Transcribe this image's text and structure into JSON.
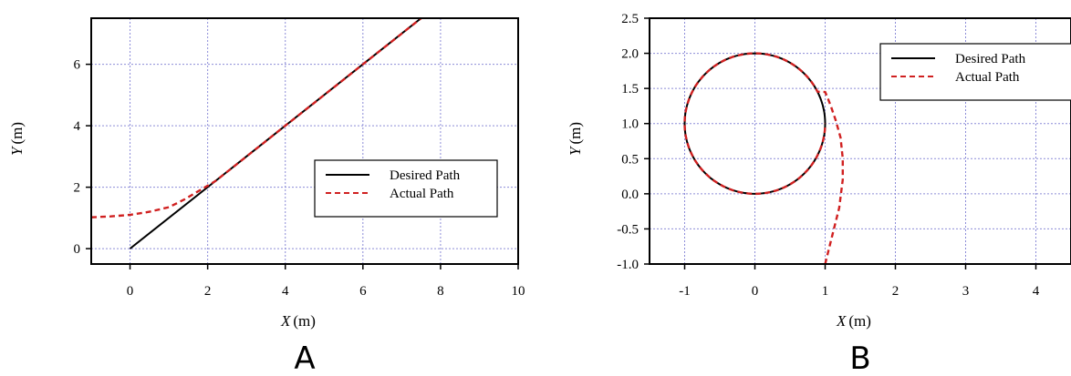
{
  "colors": {
    "desired": "#000000",
    "actual": "#d02020",
    "grid": "#8c8cd8"
  },
  "chart_data": [
    {
      "type": "line",
      "panel_label": "A",
      "xlabel_italic": "X",
      "xlabel_unit": "(m)",
      "ylabel_italic": "Y",
      "ylabel_unit": "(m)",
      "xlim": [
        -1,
        10
      ],
      "ylim": [
        -0.5,
        7.5
      ],
      "xticks": [
        0,
        2,
        4,
        6,
        8,
        10
      ],
      "xtick_labels": [
        "0",
        "2",
        "4",
        "6",
        "8",
        "10"
      ],
      "yticks": [
        0,
        2,
        4,
        6
      ],
      "ytick_labels": [
        "0",
        "2",
        "4",
        "6"
      ],
      "grid": true,
      "legend_position": "bottom-right",
      "series": [
        {
          "name": "Desired Path",
          "style": "solid",
          "x": [
            0,
            7.5
          ],
          "y": [
            0,
            7.5
          ]
        },
        {
          "name": "Actual Path",
          "style": "dashed",
          "x": [
            -1,
            -0.5,
            0,
            0.5,
            1,
            1.4,
            1.8,
            2.2,
            2.6,
            3,
            4,
            5,
            6,
            7,
            7.5
          ],
          "y": [
            1.02,
            1.05,
            1.1,
            1.2,
            1.35,
            1.6,
            1.9,
            2.2,
            2.6,
            3,
            4,
            5,
            6,
            7,
            7.5
          ]
        }
      ]
    },
    {
      "type": "line",
      "panel_label": "B",
      "xlabel_italic": "X",
      "xlabel_unit": "(m)",
      "ylabel_italic": "Y",
      "ylabel_unit": "(m)",
      "xlim": [
        -1.5,
        4.5
      ],
      "ylim": [
        -1,
        2.5
      ],
      "xticks": [
        -1,
        0,
        1,
        2,
        3,
        4
      ],
      "xtick_labels": [
        "-1",
        "0",
        "1",
        "2",
        "3",
        "4"
      ],
      "yticks": [
        -1,
        -0.5,
        0,
        0.5,
        1,
        1.5,
        2,
        2.5
      ],
      "ytick_labels": [
        "-1.0",
        "-0.5",
        "0.0",
        "0.5",
        "1.0",
        "1.5",
        "2.0",
        "2.5"
      ],
      "grid": true,
      "legend_position": "top-right",
      "series": [
        {
          "name": "Desired Path",
          "style": "solid",
          "shape": "circle",
          "center": [
            0,
            1
          ],
          "radius": 1
        },
        {
          "name": "Actual Path",
          "style": "dashed",
          "x": [
            1.0,
            1.1,
            1.2,
            1.25,
            1.25,
            1.22,
            1.15,
            1.08,
            1.03,
            1.0
          ],
          "y": [
            -1.0,
            -0.6,
            -0.2,
            0.2,
            0.5,
            0.8,
            1.05,
            1.25,
            1.38,
            1.45
          ],
          "followed_by_circle_from_angle_deg": 27
        }
      ]
    }
  ]
}
